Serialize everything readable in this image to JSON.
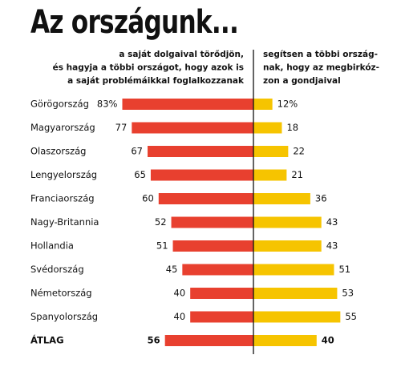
{
  "chart_data": {
    "type": "diverging_bar",
    "title": "Az országunk...",
    "categories": [
      "Görögország",
      "Magyarország",
      "Olaszország",
      "Lengyelország",
      "Franciaország",
      "Nagy-Britannia",
      "Hollandia",
      "Svédország",
      "Németország",
      "Spanyolország",
      "ÁTLAG"
    ],
    "series": [
      {
        "label_lines": [
          "a saját dolgaival törődjön,",
          "és hagyja a többi országot, hogy azok is",
          "a saját problémáikkal foglalkozzanak"
        ],
        "color": "#e8402f",
        "values": [
          83,
          77,
          67,
          65,
          60,
          52,
          51,
          45,
          40,
          40,
          56
        ],
        "value_labels": [
          "83%",
          "77",
          "67",
          "65",
          "60",
          "52",
          "51",
          "45",
          "40",
          "40",
          "56"
        ]
      },
      {
        "label_lines": [
          "segítsen a többi ország-",
          "nak, hogy az megbirkóz-",
          "zon a gondjaival"
        ],
        "color": "#f6c400",
        "values": [
          12,
          18,
          22,
          21,
          36,
          43,
          43,
          51,
          53,
          55,
          40
        ],
        "value_labels": [
          "12%",
          "18",
          "22",
          "21",
          "36",
          "43",
          "43",
          "51",
          "53",
          "55",
          "40"
        ]
      }
    ]
  }
}
